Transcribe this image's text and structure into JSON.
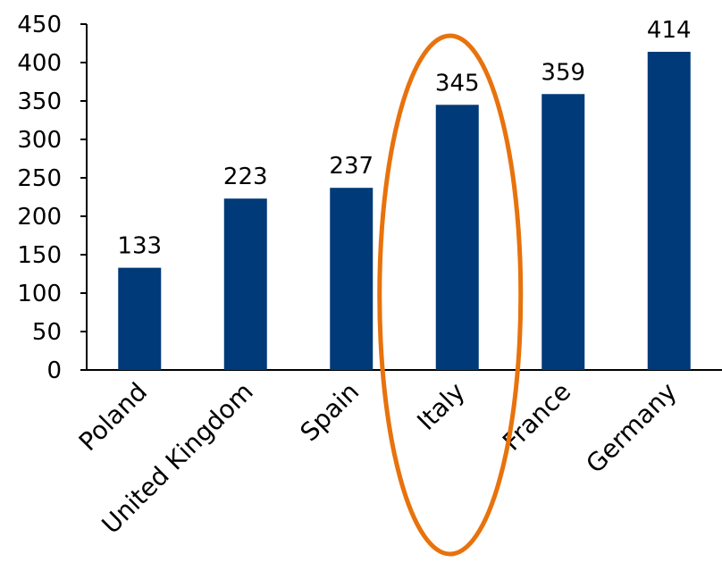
{
  "chart_data": {
    "type": "bar",
    "title": "",
    "xlabel": "",
    "ylabel": "",
    "categories": [
      "Poland",
      "United Kingdom",
      "Spain",
      "Italy",
      "France",
      "Germany"
    ],
    "values": [
      133,
      223,
      237,
      345,
      359,
      414
    ],
    "data_labels": [
      "133",
      "223",
      "237",
      "345",
      "359",
      "414"
    ],
    "ylim": [
      0,
      450
    ],
    "yticks": [
      "0",
      "50",
      "100",
      "150",
      "200",
      "250",
      "300",
      "350",
      "400",
      "450"
    ],
    "grid": false,
    "legend": "none",
    "highlight_category": "Italy",
    "colors": {
      "bar": "#003a78",
      "highlight_ellipse": "#e8720c",
      "axis": "#000000"
    }
  }
}
